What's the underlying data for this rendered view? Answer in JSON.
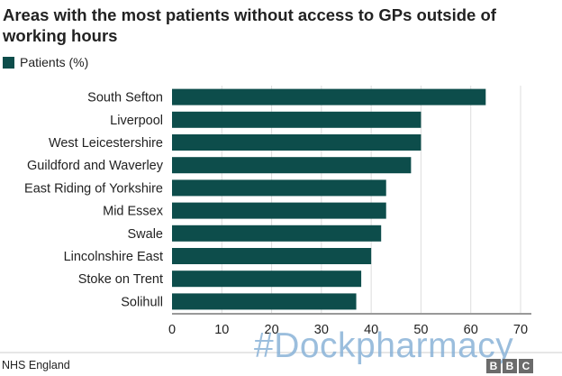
{
  "title": "Areas with the most patients without access to GPs outside of working hours",
  "source": "NHS England",
  "watermark": "#Dockpharmacy",
  "logo_letters": [
    "B",
    "B",
    "C"
  ],
  "colors": {
    "bar": "#0d4d4b",
    "grid": "#dddddd",
    "axis": "#333333",
    "text": "#222222"
  },
  "chart_data": {
    "type": "bar",
    "orientation": "horizontal",
    "categories": [
      "South Sefton",
      "Liverpool",
      "West Leicestershire",
      "Guildford and Waverley",
      "East Riding of Yorkshire",
      "Mid Essex",
      "Swale",
      "Lincolnshire East",
      "Stoke on Trent",
      "Solihull"
    ],
    "series": [
      {
        "name": "Patients (%)",
        "values": [
          63,
          50,
          50,
          48,
          43,
          43,
          42,
          40,
          38,
          37
        ]
      }
    ],
    "xlim": [
      0,
      70
    ],
    "xticks": [
      0,
      10,
      20,
      30,
      40,
      50,
      60,
      70
    ],
    "grid": true,
    "legend": "top-left"
  }
}
